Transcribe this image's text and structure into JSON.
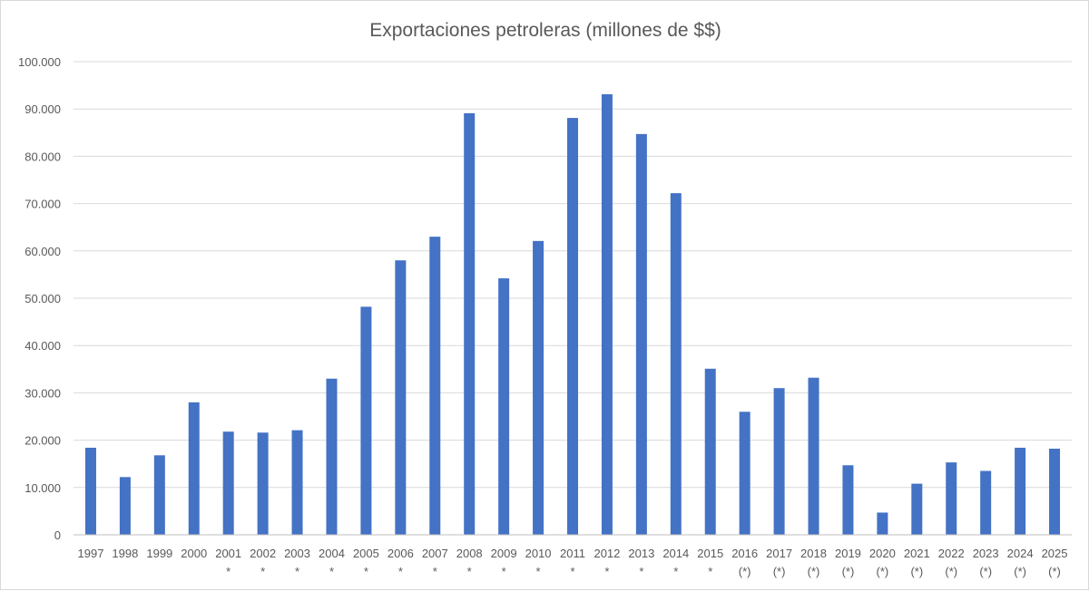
{
  "chart_data": {
    "type": "bar",
    "title": "Exportaciones petroleras (millones de $$)",
    "xlabel": "",
    "ylabel": "",
    "ylim": [
      0,
      100000
    ],
    "y_ticks": [
      "0",
      "10.000",
      "20.000",
      "30.000",
      "40.000",
      "50.000",
      "60.000",
      "70.000",
      "80.000",
      "90.000",
      "100.000"
    ],
    "y_tick_values": [
      0,
      10000,
      20000,
      30000,
      40000,
      50000,
      60000,
      70000,
      80000,
      90000,
      100000
    ],
    "grid": true,
    "legend": "none",
    "bar_color": "#4472C4",
    "categories": [
      "1997",
      "1998",
      "1999",
      "2000",
      "2001",
      "2002",
      "2003",
      "2004",
      "2005",
      "2006",
      "2007",
      "2008",
      "2009",
      "2010",
      "2011",
      "2012",
      "2013",
      "2014",
      "2015",
      "2016",
      "2017",
      "2018",
      "2019",
      "2020",
      "2021",
      "2022",
      "2023",
      "2024",
      "2025"
    ],
    "category_marks": [
      "",
      "",
      "",
      "",
      "*",
      "*",
      "*",
      "*",
      "*",
      "*",
      "*",
      "*",
      "*",
      "*",
      "*",
      "*",
      "*",
      "*",
      "*",
      "(*)",
      "(*)",
      "(*)",
      "(*)",
      "(*)",
      "(*)",
      "(*)",
      "(*)",
      "(*)",
      "(*)"
    ],
    "values": [
      18400,
      12200,
      16800,
      28000,
      21800,
      21600,
      22100,
      33000,
      48200,
      58000,
      63000,
      89100,
      54200,
      62100,
      88100,
      93100,
      84700,
      72200,
      35100,
      26000,
      31000,
      33200,
      14700,
      4700,
      10800,
      15300,
      13500,
      18400,
      18200
    ]
  }
}
